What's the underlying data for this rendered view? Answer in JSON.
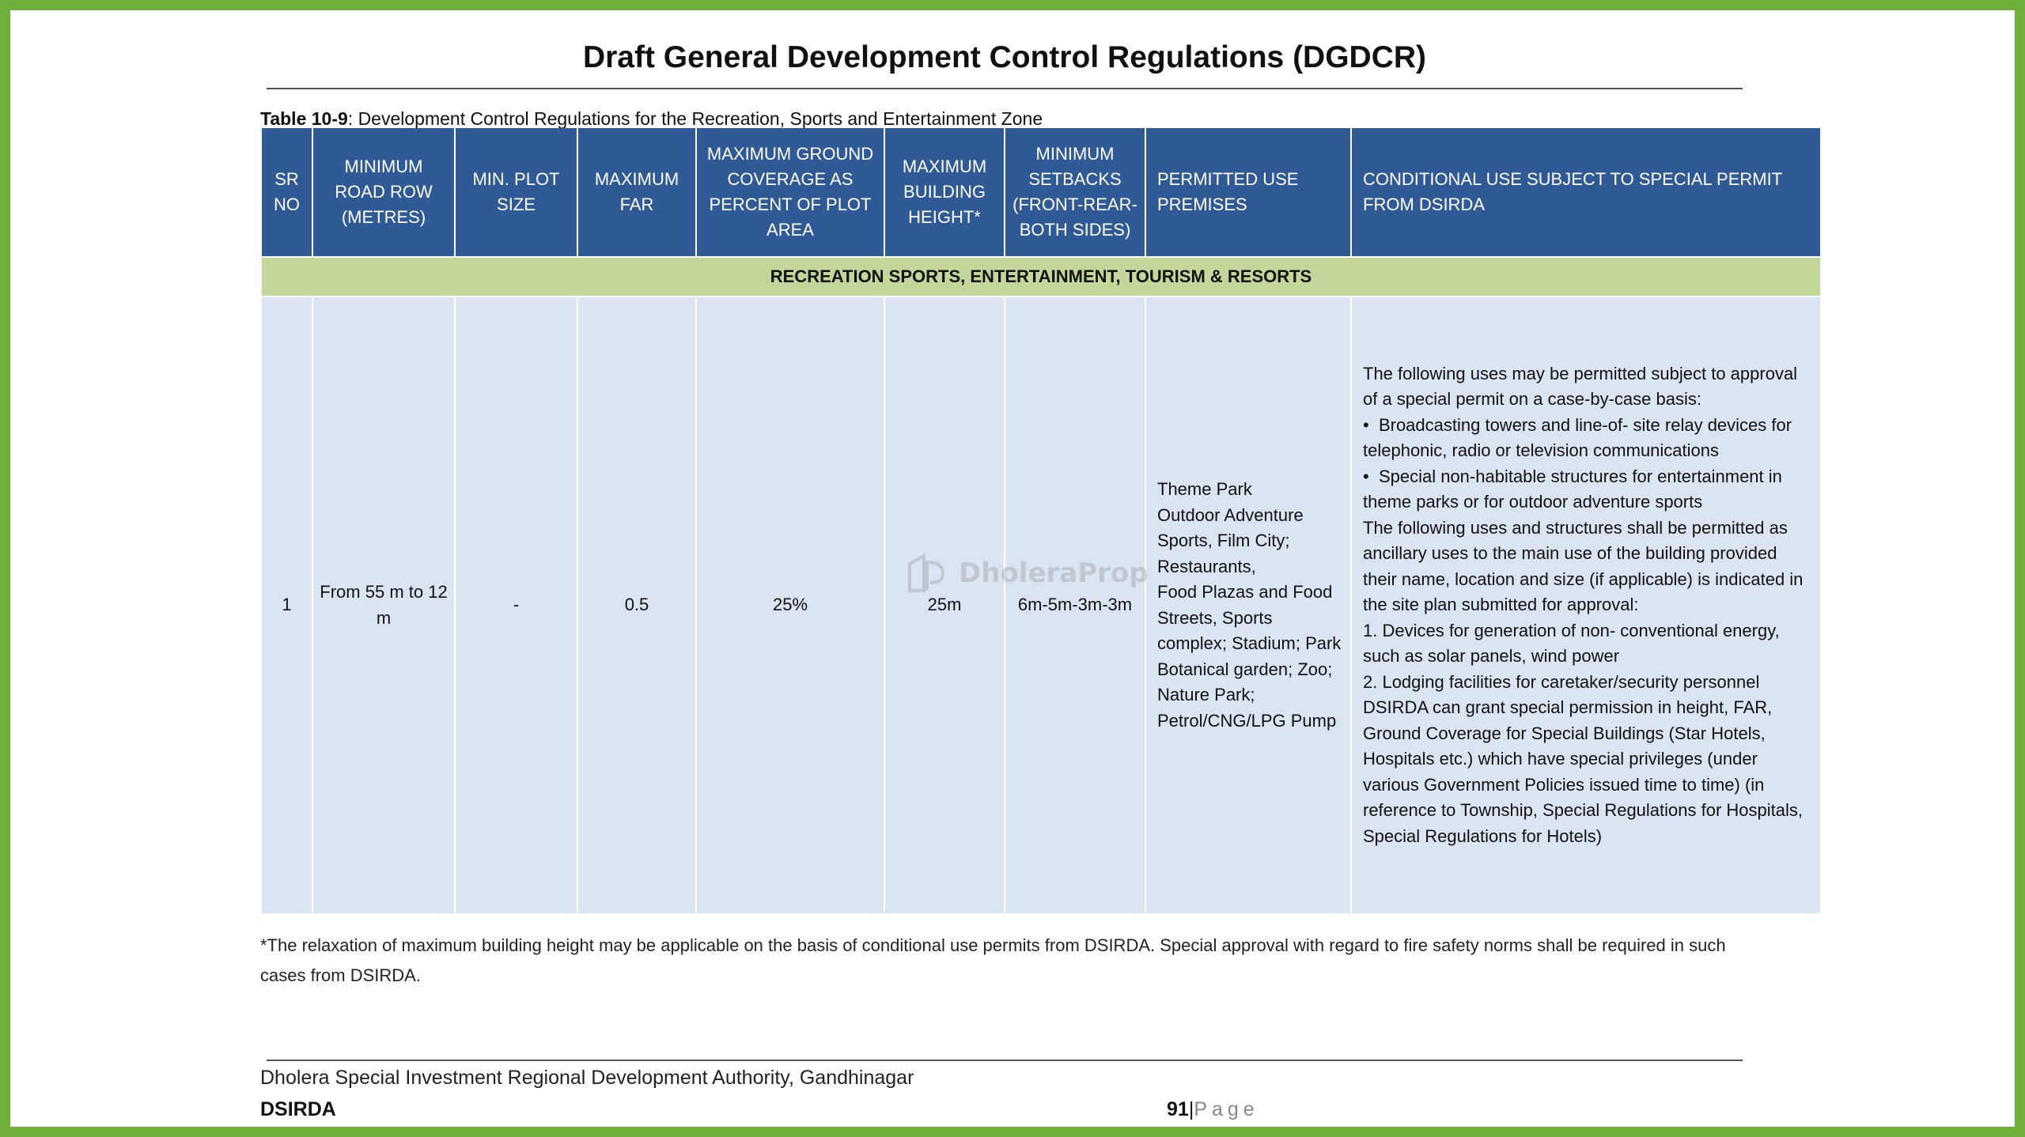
{
  "header": {
    "title": "Draft General Development Control Regulations (DGDCR)"
  },
  "caption": {
    "label": "Table 10-9",
    "text": ": Development Control Regulations for the Recreation, Sports and Entertainment Zone"
  },
  "table": {
    "columns": [
      "SR NO",
      "MINIMUM ROAD ROW (METRES)",
      "MIN. PLOT SIZE",
      "MAXIMUM FAR",
      "MAXIMUM GROUND COVERAGE AS PERCENT OF PLOT AREA",
      "MAXIMUM BUILDING HEIGHT*",
      "MINIMUM SETBACKS (FRONT-REAR-BOTH SIDES)",
      "PERMITTED USE PREMISES",
      "CONDITIONAL USE SUBJECT TO SPECIAL PERMIT FROM DSIRDA"
    ],
    "zone_band": "RECREATION SPORTS, ENTERTAINMENT, TOURISM & RESORTS",
    "row": {
      "sr_no": "1",
      "road_row": "From 55 m to 12 m",
      "min_plot": "-",
      "max_far": "0.5",
      "ground_coverage": "25%",
      "building_height": "25m",
      "setbacks": "6m-5m-3m-3m",
      "permitted_use": [
        "Theme Park",
        "Outdoor Adventure Sports, Film City;",
        "Restaurants,",
        "Food Plazas and Food Streets, Sports complex; Stadium; Park",
        "Botanical garden; Zoo; Nature Park; Petrol/CNG/LPG Pump"
      ],
      "conditional_use": [
        "The following uses may be permitted subject to approval of a special permit on a case-by-case basis:",
        "Broadcasting towers and line-of- site relay devices for telephonic,  radio or television communications",
        "Special non-habitable structures  for entertainment in theme parks  or for outdoor adventure sports",
        "The following uses and structures shall be permitted as ancillary uses to the main use of the building provided their name, location and size (if applicable) is indicated in the site plan submitted for approval:",
        "1.  Devices for generation of non- conventional energy, such as solar  panels, wind power",
        "2.  Lodging facilities for  caretaker/security personnel",
        "DSIRDA can grant special permission in height, FAR, Ground Coverage for Special Buildings (Star Hotels, Hospitals etc.) which have special privileges (under various Government Policies issued time to time) (in reference to Township, Special Regulations for Hospitals, Special Regulations for Hotels)"
      ]
    }
  },
  "watermark": {
    "text": "DholeraProp",
    "icon": "dp-logo-icon"
  },
  "footnote": "*The relaxation of maximum building height may be applicable on the basis of conditional use permits from DSIRDA. Special approval with regard to fire safety norms shall be required in such cases from DSIRDA.",
  "footer": {
    "organization": "Dholera Special Investment Regional Development Authority, Gandhinagar",
    "abbreviation": "DSIRDA",
    "page_number": "91",
    "page_separator": "|",
    "page_word": "Page"
  },
  "colors": {
    "frame": "#6fb03b",
    "header_fill": "#2f5a96",
    "band_fill": "#c4d79b",
    "row_fill": "#dbe5f1"
  }
}
